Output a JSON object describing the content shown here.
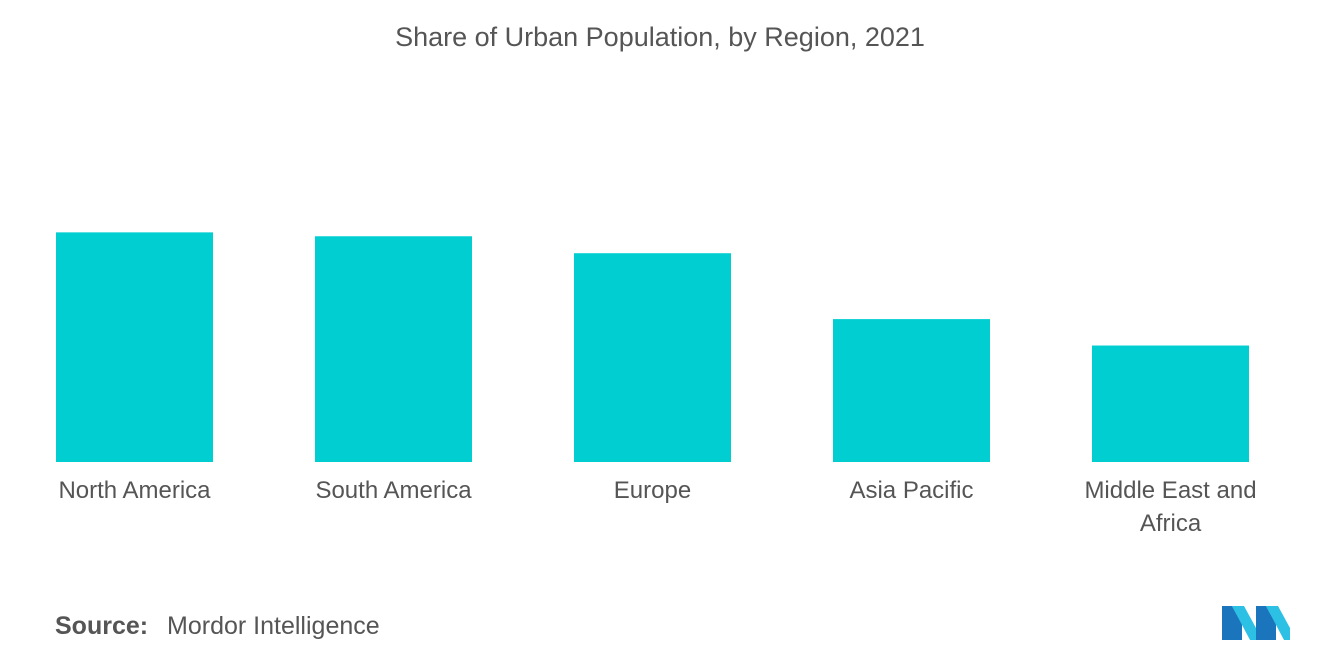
{
  "chart_data": {
    "type": "bar",
    "title": "Share of Urban Population, by Region, 2021",
    "categories": [
      "North America",
      "South America",
      "Europe",
      "Asia Pacific",
      "Middle East and Africa"
    ],
    "category_lines": [
      [
        "North America"
      ],
      [
        "South America"
      ],
      [
        "Europe"
      ],
      [
        "Asia Pacific"
      ],
      [
        "Middle East and",
        "Africa"
      ]
    ],
    "values": [
      82.6,
      81.2,
      75.1,
      51.4,
      41.9
    ],
    "ylim": [
      0,
      100
    ],
    "xlabel": "",
    "ylabel": "",
    "grid": false,
    "bar_color": "#00CED1"
  },
  "source": {
    "label": "Source:",
    "text": "Mordor Intelligence"
  },
  "colors": {
    "bar": "#00CED1",
    "text": "#555555",
    "logo_dark": "#1B75BC",
    "logo_light": "#2BC0E4"
  }
}
